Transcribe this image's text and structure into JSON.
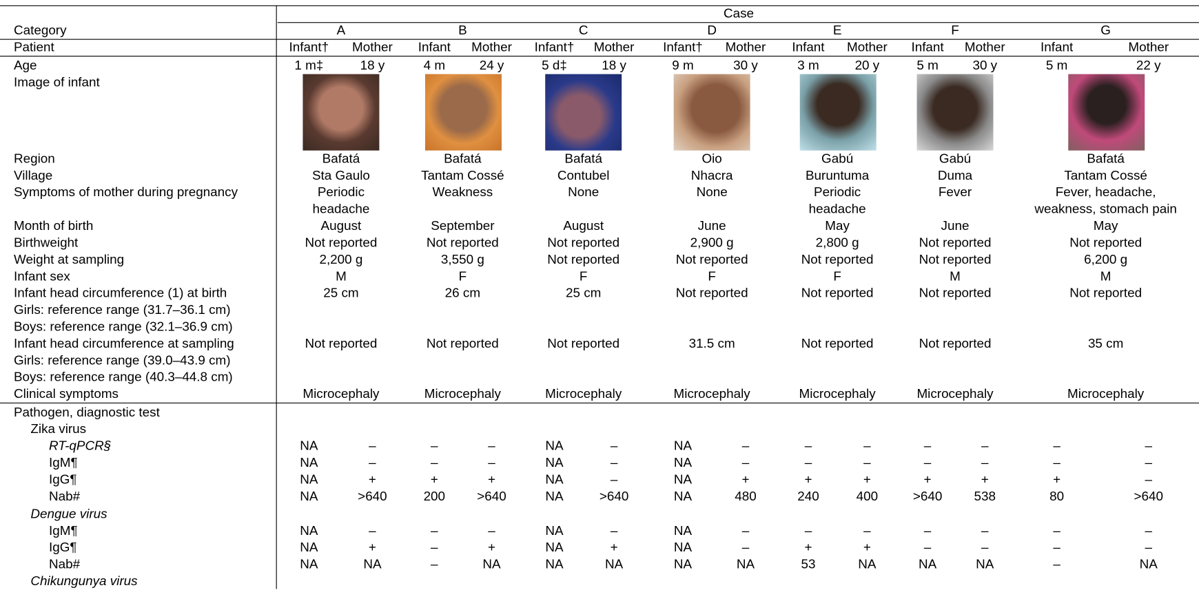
{
  "table": {
    "case_label": "Case",
    "category_label": "Category",
    "patient_label": "Patient",
    "cases": [
      "A",
      "B",
      "C",
      "D",
      "E",
      "F",
      "G"
    ],
    "patients": [
      "Infant†",
      "Mother",
      "Infant",
      "Mother",
      "Infant†",
      "Mother",
      "Infant†",
      "Mother",
      "Infant",
      "Mother",
      "Infant",
      "Mother",
      "Infant",
      "Mother"
    ],
    "rows": [
      {
        "label": [
          "Age"
        ],
        "cells": [
          "1 m‡",
          "18 y",
          "4 m",
          "24 y",
          "5 d‡",
          "18 y",
          "9 m",
          "30 y",
          "3 m",
          "20 y",
          "5 m",
          "30 y",
          "5 m",
          "22 y"
        ]
      },
      {
        "label": [
          "Image of infant"
        ]
      },
      {
        "label": [
          "Region"
        ],
        "case_cells": [
          "Bafatá",
          "Bafatá",
          "Bafatá",
          "Oio",
          "Gabú",
          "Gabú",
          "Bafatá"
        ]
      },
      {
        "label": [
          "Village"
        ],
        "case_cells": [
          "Sta Gaulo",
          "Tantam Cossé",
          "Contubel",
          "Nhacra",
          "Buruntuma",
          "Duma",
          "Tantam Cossé"
        ]
      },
      {
        "label": [
          "Symptoms of mother during pregnancy"
        ],
        "case_cells": [
          [
            "Periodic",
            "headache"
          ],
          [
            "Weakness"
          ],
          [
            "None"
          ],
          [
            "None"
          ],
          [
            "Periodic",
            "headache"
          ],
          [
            "Fever"
          ],
          [
            "Fever, headache,",
            "weakness, stomach pain"
          ]
        ]
      },
      {
        "label": [
          "Month of birth"
        ],
        "case_cells": [
          "August",
          "September",
          "August",
          "June",
          "May",
          "June",
          "May"
        ]
      },
      {
        "label": [
          "Birthweight"
        ],
        "case_cells": [
          "Not reported",
          "Not reported",
          "Not reported",
          "2,900 g",
          "2,800 g",
          "Not reported",
          "Not reported"
        ]
      },
      {
        "label": [
          "Weight at sampling"
        ],
        "case_cells": [
          "2,200 g",
          "3,550 g",
          "Not reported",
          "Not reported",
          "Not reported",
          "Not reported",
          "6,200 g"
        ]
      },
      {
        "label": [
          "Infant sex"
        ],
        "case_cells": [
          "M",
          "F",
          "F",
          "F",
          "F",
          "M",
          "M"
        ]
      },
      {
        "label": [
          "Infant head circumference (1) at birth",
          "Girls: reference range (31.7–36.1 cm)",
          "Boys: reference range (32.1–36.9 cm)"
        ],
        "case_cells": [
          "25 cm",
          "26 cm",
          "25 cm",
          "Not reported",
          "Not reported",
          "Not reported",
          "Not reported"
        ]
      },
      {
        "label": [
          "Infant head circumference at sampling",
          "Girls: reference range (39.0–43.9 cm)",
          "Boys: reference range (40.3–44.8 cm)"
        ],
        "case_cells": [
          "Not reported",
          "Not reported",
          "Not reported",
          "31.5 cm",
          "Not reported",
          "Not reported",
          "35 cm"
        ]
      },
      {
        "label": [
          "Clinical symptoms"
        ],
        "case_cells": [
          "Microcephaly",
          "Microcephaly",
          "Microcephaly",
          "Microcephaly",
          "Microcephaly",
          "Microcephaly",
          "Microcephaly"
        ]
      },
      {
        "label": [
          "Pathogen, diagnostic test"
        ]
      },
      {
        "label": [
          "Zika virus"
        ]
      },
      {
        "label": [
          "RT-qPCR§"
        ],
        "cells": [
          "NA",
          "–",
          "–",
          "–",
          "NA",
          "–",
          "NA",
          "–",
          "–",
          "–",
          "–",
          "–",
          "–",
          "–"
        ]
      },
      {
        "label": [
          "IgM¶"
        ],
        "cells": [
          "NA",
          "–",
          "–",
          "–",
          "NA",
          "–",
          "NA",
          "–",
          "–",
          "–",
          "–",
          "–",
          "–",
          "–"
        ]
      },
      {
        "label": [
          "IgG¶"
        ],
        "cells": [
          "NA",
          "+",
          "+",
          "+",
          "NA",
          "–",
          "NA",
          "+",
          "+",
          "+",
          "+",
          "+",
          "+",
          "–"
        ]
      },
      {
        "label": [
          "Nab#"
        ],
        "cells": [
          "NA",
          ">640",
          "200",
          ">640",
          "NA",
          ">640",
          "NA",
          "480",
          "240",
          "400",
          ">640",
          "538",
          "80",
          ">640"
        ]
      },
      {
        "label": [
          "Dengue virus"
        ]
      },
      {
        "label": [
          "IgM¶"
        ],
        "cells": [
          "NA",
          "–",
          "–",
          "–",
          "NA",
          "–",
          "NA",
          "–",
          "–",
          "–",
          "–",
          "–",
          "–",
          "–"
        ]
      },
      {
        "label": [
          "IgG¶"
        ],
        "cells": [
          "NA",
          "+",
          "–",
          "+",
          "NA",
          "+",
          "NA",
          "–",
          "+",
          "+",
          "–",
          "–",
          "–",
          "–"
        ]
      },
      {
        "label": [
          "Nab#"
        ],
        "cells": [
          "NA",
          "NA",
          "–",
          "NA",
          "NA",
          "NA",
          "NA",
          "NA",
          "53",
          "NA",
          "NA",
          "NA",
          "–",
          "NA"
        ]
      },
      {
        "label": [
          "Chikungunya virus"
        ]
      }
    ]
  }
}
